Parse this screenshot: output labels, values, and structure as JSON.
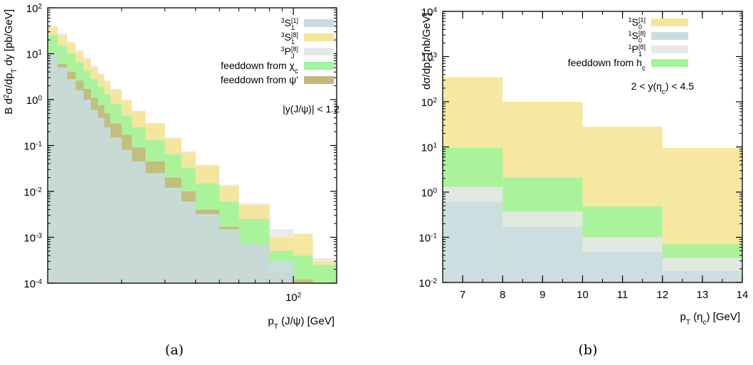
{
  "chart_data": [
    {
      "id": "a",
      "type": "histogram",
      "caption": "(a)",
      "xlabel": "p_T (J/ψ) [GeV]",
      "ylabel": "B d²σ/dp_T dy [pb/GeV]",
      "x_log": true,
      "y_log": true,
      "xlim": [
        10,
        150
      ],
      "ylim": [
        0.0001,
        100
      ],
      "x_ticks": [
        {
          "value": 100,
          "label": "10",
          "exp": "2"
        }
      ],
      "y_ticks": [
        {
          "value": 0.0001,
          "label": "10",
          "exp": "-4"
        },
        {
          "value": 0.001,
          "label": "10",
          "exp": "-3"
        },
        {
          "value": 0.01,
          "label": "10",
          "exp": "-2"
        },
        {
          "value": 0.1,
          "label": "10",
          "exp": "-1"
        },
        {
          "value": 1,
          "label": "10",
          "exp": "0"
        },
        {
          "value": 10,
          "label": "10",
          "exp": "1"
        },
        {
          "value": 100,
          "label": "10",
          "exp": "2"
        }
      ],
      "annotation": "|y(J/ψ)| < 1.2",
      "legend_position": "top-right",
      "bin_edges": [
        10,
        11,
        12,
        13,
        14,
        15,
        16,
        17,
        18,
        20,
        22,
        25,
        30,
        35,
        40,
        50,
        60,
        80,
        100,
        120,
        150
      ],
      "series": [
        {
          "name": "3S1[1]",
          "label_html": {
            "pre": "3",
            "main": "S",
            "sub": "1",
            "sup": "[1]"
          },
          "color": "#c9dde0",
          "values": [
            10,
            5,
            2.8,
            1.6,
            1,
            0.6,
            0.4,
            0.25,
            0.15,
            0.08,
            0.045,
            0.025,
            0.012,
            0.006,
            0.0032,
            0.0015,
            0.0007,
            0.0003,
            0.0001,
            0.0001
          ]
        },
        {
          "name": "3S1[8]",
          "label_html": {
            "pre": "3",
            "main": "S",
            "sub": "1",
            "sup": "[8]"
          },
          "color": "#f5e597",
          "values": [
            38,
            25,
            17,
            11,
            7.5,
            5,
            3.5,
            2.5,
            1.6,
            0.95,
            0.55,
            0.3,
            0.14,
            0.07,
            0.036,
            0.013,
            0.005,
            0.001,
            0.0012,
            0.0003
          ]
        },
        {
          "name": "3PJ[8]",
          "label_html": {
            "pre": "3",
            "main": "P",
            "sub": "J",
            "sup": "[8]"
          },
          "color": "#e8e8e8",
          "values": [
            40,
            28,
            18,
            12,
            8,
            5.4,
            3.7,
            2.6,
            1.7,
            1,
            0.58,
            0.31,
            0.15,
            0.075,
            0.038,
            0.014,
            0.0055,
            0.0015,
            0.00075,
            0.00035
          ]
        },
        {
          "name": "feeddown from χc",
          "label_html": {
            "pre": "",
            "main": "feeddown from χ",
            "sub": "c",
            "sup": ""
          },
          "color": "#9ef59a",
          "values": [
            25,
            15,
            10,
            6.5,
            4.2,
            2.8,
            1.9,
            1.3,
            0.8,
            0.45,
            0.25,
            0.13,
            0.065,
            0.032,
            0.015,
            0.006,
            0.0025,
            0.0005,
            0.0004,
            0.00025
          ]
        },
        {
          "name": "feeddown from ψ'",
          "label_html": {
            "pre": "",
            "main": "feeddown from ψ'",
            "sub": "",
            "sup": ""
          },
          "color": "#c4b87a",
          "values": [
            10,
            6,
            4,
            2.6,
            1.7,
            1.1,
            0.75,
            0.5,
            0.3,
            0.17,
            0.09,
            0.045,
            0.02,
            0.01,
            0.004,
            0.0017,
            0.00065,
            0.00018,
            0.00012,
            0.0001
          ]
        }
      ]
    },
    {
      "id": "b",
      "type": "histogram",
      "caption": "(b)",
      "xlabel": "p_T (ηc) [GeV]",
      "ylabel": "dσ/dp_T [nb/GeV]",
      "x_log": false,
      "y_log": true,
      "xlim": [
        6.5,
        14
      ],
      "ylim": [
        0.01,
        10000
      ],
      "x_ticks": [
        {
          "value": 7,
          "label": "7"
        },
        {
          "value": 8,
          "label": "8"
        },
        {
          "value": 9,
          "label": "9"
        },
        {
          "value": 10,
          "label": "10"
        },
        {
          "value": 11,
          "label": "11"
        },
        {
          "value": 12,
          "label": "12"
        },
        {
          "value": 13,
          "label": "13"
        },
        {
          "value": 14,
          "label": "14"
        }
      ],
      "y_ticks": [
        {
          "value": 0.01,
          "label": "10",
          "exp": "-2"
        },
        {
          "value": 0.1,
          "label": "10",
          "exp": "-1"
        },
        {
          "value": 1,
          "label": "10",
          "exp": "0"
        },
        {
          "value": 10,
          "label": "10",
          "exp": "1"
        },
        {
          "value": 100,
          "label": "10",
          "exp": "2"
        },
        {
          "value": 1000,
          "label": "10",
          "exp": "3"
        },
        {
          "value": 10000,
          "label": "10",
          "exp": "4"
        }
      ],
      "annotation": "2 < y(ηc) < 4.5",
      "legend_position": "top-right",
      "bin_edges": [
        6.5,
        8,
        10,
        12,
        14
      ],
      "series": [
        {
          "name": "1S0[1]",
          "label_html": {
            "pre": "1",
            "main": "S",
            "sub": "0",
            "sup": "[1]"
          },
          "color": "#f5e597",
          "values": [
            350,
            100,
            28,
            9.5
          ]
        },
        {
          "name": "1S0[8]",
          "label_html": {
            "pre": "1",
            "main": "S",
            "sub": "0",
            "sup": "[8]"
          },
          "color": "#c9dde0",
          "values": [
            0.6,
            0.17,
            0.048,
            0.018
          ]
        },
        {
          "name": "1P1[8]",
          "label_html": {
            "pre": "1",
            "main": "P",
            "sub": "1",
            "sup": "[8]"
          },
          "color": "#e8e8e8",
          "values": [
            1.3,
            0.37,
            0.1,
            0.035
          ]
        },
        {
          "name": "feeddown from hc",
          "label_html": {
            "pre": "",
            "main": "feeddown from h",
            "sub": "c",
            "sup": ""
          },
          "color": "#9ef59a",
          "values": [
            9.5,
            2.1,
            0.48,
            0.07
          ]
        }
      ]
    }
  ]
}
